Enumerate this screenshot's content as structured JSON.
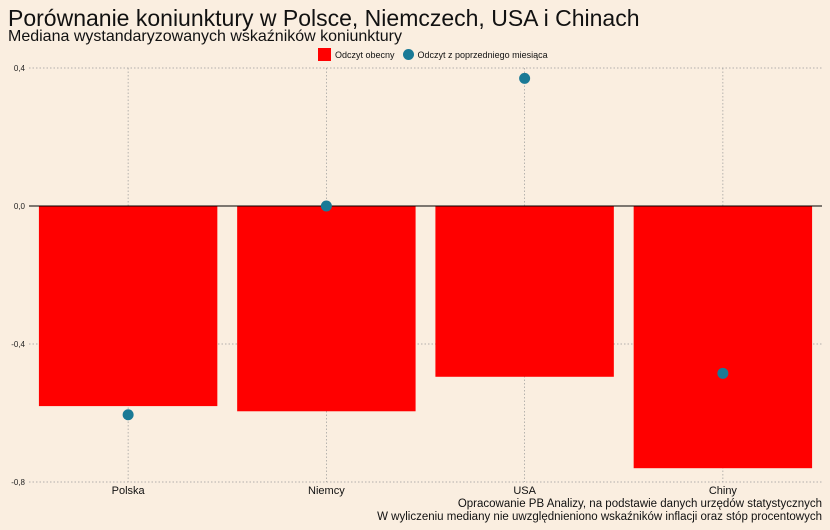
{
  "chart_data": {
    "type": "bar",
    "title": "Porównanie koniunktury w Polsce, Niemczech, USA i Chinach",
    "subtitle": "Mediana wystandaryzowanych wskaźników koniunktury",
    "categories": [
      "Polska",
      "Niemcy",
      "USA",
      "Chiny"
    ],
    "series": [
      {
        "name": "Odczyt obecny",
        "kind": "bar",
        "color": "#ff0000",
        "values": [
          -0.58,
          -0.595,
          -0.495,
          -0.76
        ]
      },
      {
        "name": "Odczyt z poprzedniego miesiąca",
        "kind": "point",
        "color": "#1a7a96",
        "values": [
          -0.605,
          0.0,
          0.37,
          -0.485
        ]
      }
    ],
    "ylim": [
      -0.8,
      0.4
    ],
    "yticks": [
      -0.8,
      -0.4,
      0.0,
      0.4
    ],
    "ytick_labels": [
      "-0,8",
      "-0,4",
      "0,0",
      "0,4"
    ],
    "legend_position": "top",
    "grid": true,
    "captions": [
      "Opracowanie PB Analizy, na podstawie danych urzędów statystycznych",
      "W wyliczeniu mediany nie uwzględnieniono wskaźników inflacji oraz stóp procentowych"
    ]
  }
}
